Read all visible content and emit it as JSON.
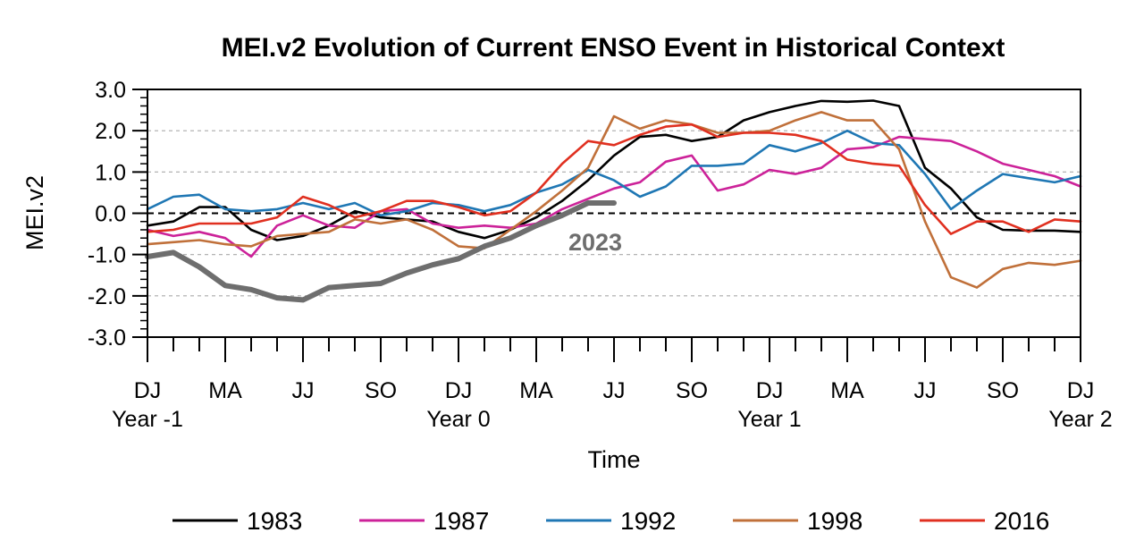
{
  "chart_data": {
    "type": "line",
    "title": "MEI.v2 Evolution of Current ENSO Event in Historical Context",
    "xlabel": "Time",
    "ylabel": "MEI.v2",
    "ylim": [
      -3.0,
      3.0
    ],
    "yticks": [
      "3.0",
      "2.0",
      "1.0",
      "0.0",
      "-1.0",
      "-2.0",
      "-3.0"
    ],
    "xticks_top": [
      "DJ",
      "MA",
      "JJ",
      "SO",
      "DJ",
      "MA",
      "JJ",
      "SO",
      "DJ",
      "MA",
      "JJ",
      "SO",
      "DJ"
    ],
    "xticks_bottom": [
      "Year -1",
      "Year 0",
      "Year 1",
      "Year 2"
    ],
    "n_points": 37,
    "grid": "horizontal dashed",
    "zero_line": "dashed black",
    "legend_position": "bottom",
    "annotation": "2023",
    "series": [
      {
        "name": "1983",
        "color": "#000000",
        "values": [
          -0.3,
          -0.2,
          0.15,
          0.15,
          -0.4,
          -0.65,
          -0.55,
          -0.3,
          0.05,
          -0.1,
          -0.15,
          -0.2,
          -0.45,
          -0.6,
          -0.4,
          -0.1,
          0.3,
          0.8,
          1.4,
          1.85,
          1.9,
          1.75,
          1.85,
          2.25,
          2.45,
          2.6,
          2.72,
          2.7,
          2.73,
          2.6,
          1.1,
          0.6,
          -0.1,
          -0.4,
          -0.42,
          -0.42,
          -0.45
        ]
      },
      {
        "name": "1987",
        "color": "#cc2299",
        "values": [
          -0.4,
          -0.55,
          -0.45,
          -0.6,
          -1.05,
          -0.3,
          -0.05,
          -0.3,
          -0.35,
          0.05,
          0.1,
          -0.25,
          -0.35,
          -0.3,
          -0.35,
          -0.25,
          0.1,
          0.35,
          0.6,
          0.75,
          1.25,
          1.4,
          0.55,
          0.7,
          1.05,
          0.95,
          1.1,
          1.55,
          1.6,
          1.85,
          1.8,
          1.75,
          1.5,
          1.2,
          1.05,
          0.9,
          0.65
        ]
      },
      {
        "name": "1992",
        "color": "#1f77b4",
        "values": [
          0.1,
          0.4,
          0.45,
          0.1,
          0.05,
          0.1,
          0.25,
          0.1,
          0.25,
          -0.05,
          0.05,
          0.25,
          0.2,
          0.05,
          0.2,
          0.5,
          0.7,
          1.05,
          0.8,
          0.4,
          0.65,
          1.15,
          1.15,
          1.2,
          1.65,
          1.5,
          1.7,
          2.0,
          1.7,
          1.65,
          0.95,
          0.1,
          0.55,
          0.95,
          0.85,
          0.75,
          0.9
        ]
      },
      {
        "name": "1998",
        "color": "#c0703a",
        "values": [
          -0.75,
          -0.7,
          -0.65,
          -0.75,
          -0.8,
          -0.55,
          -0.5,
          -0.45,
          -0.15,
          -0.25,
          -0.15,
          -0.4,
          -0.8,
          -0.85,
          -0.4,
          0.05,
          0.55,
          1.1,
          2.35,
          2.05,
          2.25,
          2.15,
          1.95,
          1.95,
          2.0,
          2.25,
          2.45,
          2.25,
          2.25,
          1.55,
          -0.2,
          -1.55,
          -1.8,
          -1.35,
          -1.2,
          -1.25,
          -1.15
        ]
      },
      {
        "name": "2016",
        "color": "#e03020",
        "values": [
          -0.45,
          -0.4,
          -0.25,
          -0.25,
          -0.25,
          -0.1,
          0.4,
          0.2,
          -0.1,
          0.05,
          0.3,
          0.3,
          0.15,
          -0.05,
          0.05,
          0.5,
          1.2,
          1.75,
          1.65,
          1.9,
          2.1,
          2.15,
          1.85,
          1.95,
          1.95,
          1.9,
          1.75,
          1.3,
          1.2,
          1.15,
          0.2,
          -0.5,
          -0.2,
          -0.2,
          -0.45,
          -0.15,
          -0.2
        ]
      },
      {
        "name": "2023",
        "color": "#6e6e6e",
        "values": [
          -1.05,
          -0.95,
          -1.3,
          -1.75,
          -1.85,
          -2.05,
          -2.1,
          -1.8,
          -1.75,
          -1.7,
          -1.45,
          -1.25,
          -1.1,
          -0.8,
          -0.6,
          -0.3,
          -0.05,
          0.25,
          0.25
        ]
      }
    ]
  }
}
